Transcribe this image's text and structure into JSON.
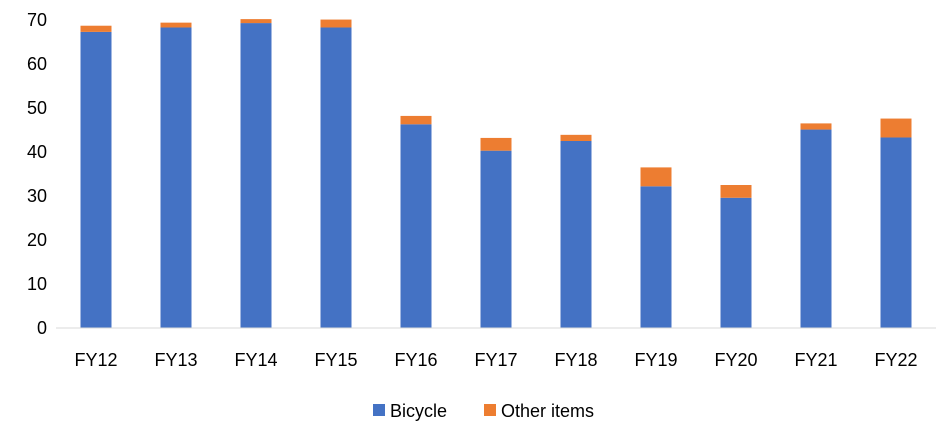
{
  "chart_data": {
    "type": "bar",
    "stacked": true,
    "categories": [
      "FY12",
      "FY13",
      "FY14",
      "FY15",
      "FY16",
      "FY17",
      "FY18",
      "FY19",
      "FY20",
      "FY21",
      "FY22"
    ],
    "series": [
      {
        "name": "Bicycle",
        "color": "#4472C4",
        "values": [
          67.3,
          68.3,
          69.3,
          68.3,
          46.3,
          40.3,
          42.5,
          32.2,
          29.6,
          45.1,
          43.3
        ]
      },
      {
        "name": "Other items",
        "color": "#ED7D31",
        "values": [
          1.4,
          1.1,
          0.9,
          1.8,
          1.9,
          2.9,
          1.4,
          4.3,
          2.9,
          1.4,
          4.3
        ]
      }
    ],
    "ylim": [
      0,
      70
    ],
    "yticks": [
      0,
      10,
      20,
      30,
      40,
      50,
      60,
      70
    ],
    "grid": false,
    "legend": "bottom",
    "title": "",
    "xlabel": "",
    "ylabel": ""
  }
}
